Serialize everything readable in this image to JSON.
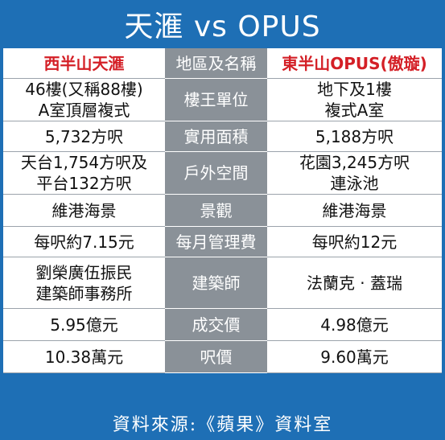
{
  "title": "天滙 vs OPUS",
  "headers": {
    "left": "西半山天滙",
    "middle": "地區及名稱",
    "right": "東半山OPUS(傲璇)"
  },
  "rows": [
    {
      "left": "46樓(又稱88樓)\nA室頂層複式",
      "label": "樓王單位",
      "right": "地下及1樓\n複式A室"
    },
    {
      "left": "5,732方呎",
      "label": "實用面積",
      "right": "5,188方呎"
    },
    {
      "left": "天台1,754方呎及\n平台132方呎",
      "label": "戶外空間",
      "right": "花園3,245方呎\n連泳池"
    },
    {
      "left": "維港海景",
      "label": "景觀",
      "right": "維港海景"
    },
    {
      "left": "每呎約7.15元",
      "label": "每月管理費",
      "right": "每呎約12元"
    },
    {
      "left": "劉榮廣伍振民\n建築師事務所",
      "label": "建築師",
      "right": "法蘭克 · 蓋瑞"
    },
    {
      "left": "5.95億元",
      "label": "成交價",
      "right": "4.98億元"
    },
    {
      "left": "10.38萬元",
      "label": "呎價",
      "right": "9.60萬元"
    }
  ],
  "footer": "資料來源:《蘋果》資料室",
  "colors": {
    "frame": "#1e6fb5",
    "label_column": "#8a9198",
    "header_text": "#d41f26"
  }
}
